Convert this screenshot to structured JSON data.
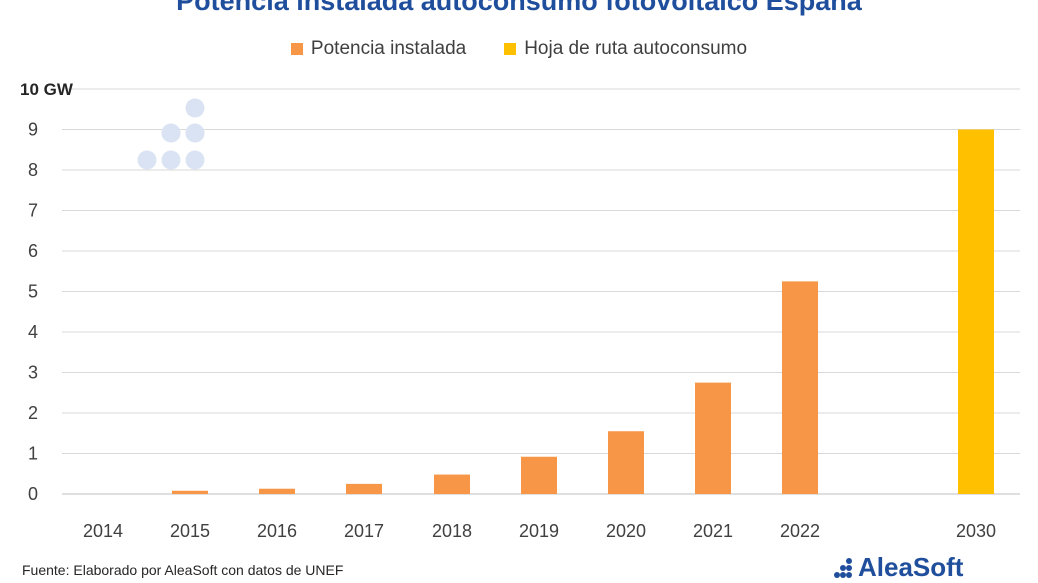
{
  "chart_data": {
    "type": "bar",
    "title": "Potencia instalada autoconsumo fotovoltaico España",
    "categories": [
      "2014",
      "2015",
      "2016",
      "2017",
      "2018",
      "2019",
      "2020",
      "2021",
      "2022",
      "2030"
    ],
    "series": [
      {
        "name": "Potencia instalada",
        "color": "#f79646",
        "values": [
          0,
          0.08,
          0.13,
          0.25,
          0.48,
          0.92,
          1.55,
          2.75,
          5.25,
          null
        ]
      },
      {
        "name": "Hoja de ruta autoconsumo",
        "color": "#ffc000",
        "values": [
          null,
          null,
          null,
          null,
          null,
          null,
          null,
          null,
          null,
          9.0
        ]
      }
    ],
    "yticks": [
      "0",
      "1",
      "2",
      "3",
      "4",
      "5",
      "6",
      "7",
      "8",
      "9",
      "10 GW"
    ],
    "ylim": [
      0,
      10
    ],
    "xlabel": "",
    "ylabel": "",
    "grid": true,
    "legend_position": "top"
  },
  "source_note": "Fuente: Elaborado por AleaSoft con datos de UNEF",
  "brand": {
    "name": "AleaSoft",
    "color": "#1f4e9c"
  }
}
